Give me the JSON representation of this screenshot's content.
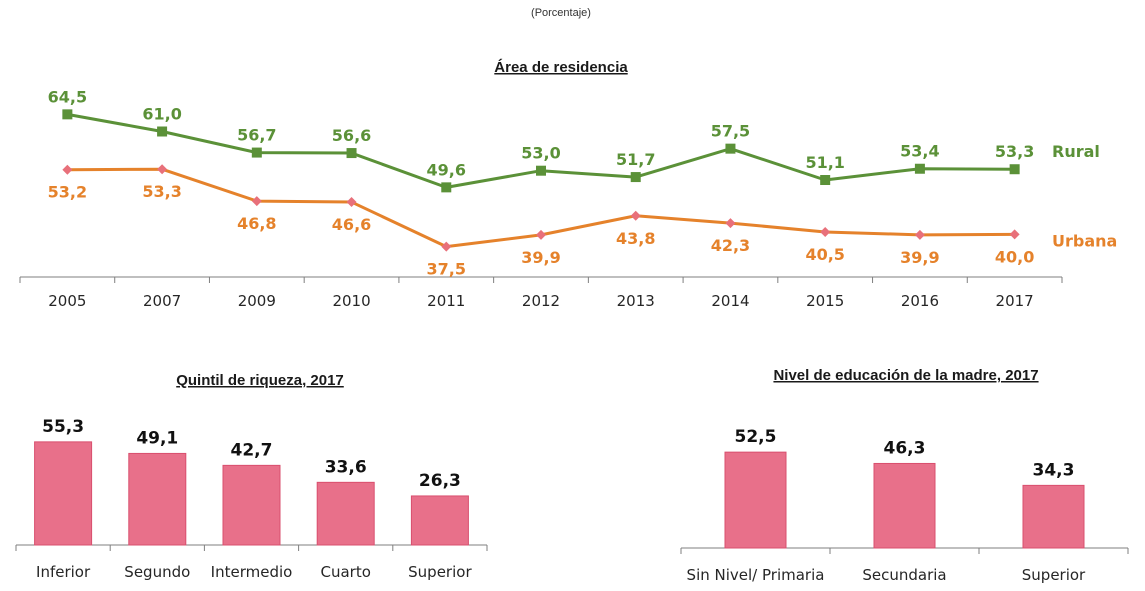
{
  "subtitle": "(Porcentaje)",
  "chart_data": [
    {
      "type": "line",
      "title": "Área de residencia",
      "categories": [
        "2005",
        "2007",
        "2009",
        "2010",
        "2011",
        "2012",
        "2013",
        "2014",
        "2015",
        "2016",
        "2017"
      ],
      "series": [
        {
          "name": "Rural",
          "color": "#5b9138",
          "marker": "square",
          "values": [
            64.5,
            61.0,
            56.7,
            56.6,
            49.6,
            53.0,
            51.7,
            57.5,
            51.1,
            53.4,
            53.3
          ],
          "labels": [
            "64,5",
            "61,0",
            "56,7",
            "56,6",
            "49,6",
            "53,0",
            "51,7",
            "57,5",
            "51,1",
            "53,4",
            "53,3"
          ]
        },
        {
          "name": "Urbana",
          "color": "#e5822b",
          "marker": "diamond",
          "values": [
            53.2,
            53.3,
            46.8,
            46.6,
            37.5,
            39.9,
            43.8,
            42.3,
            40.5,
            39.9,
            40.0
          ],
          "labels": [
            "53,2",
            "53,3",
            "46,8",
            "46,6",
            "37,5",
            "39,9",
            "43,8",
            "42,3",
            "40,5",
            "39,9",
            "40,0"
          ]
        }
      ],
      "grid": false,
      "legend": "right (labels at line ends)"
    },
    {
      "type": "bar",
      "title": "Quintil de riqueza, 2017",
      "categories": [
        "Inferior",
        "Segundo",
        "Intermedio",
        "Cuarto",
        "Superior"
      ],
      "values": [
        55.3,
        49.1,
        42.7,
        33.6,
        26.3
      ],
      "labels": [
        "55,3",
        "49,1",
        "42,7",
        "33,6",
        "26,3"
      ],
      "color": "#e8708a"
    },
    {
      "type": "bar",
      "title": "Nivel de educación de la madre, 2017",
      "categories": [
        "Sin Nivel/ Primaria",
        "Secundaria",
        "Superior"
      ],
      "values": [
        52.5,
        46.3,
        34.3
      ],
      "labels": [
        "52,5",
        "46,3",
        "34,3"
      ],
      "color": "#e8708a"
    }
  ]
}
